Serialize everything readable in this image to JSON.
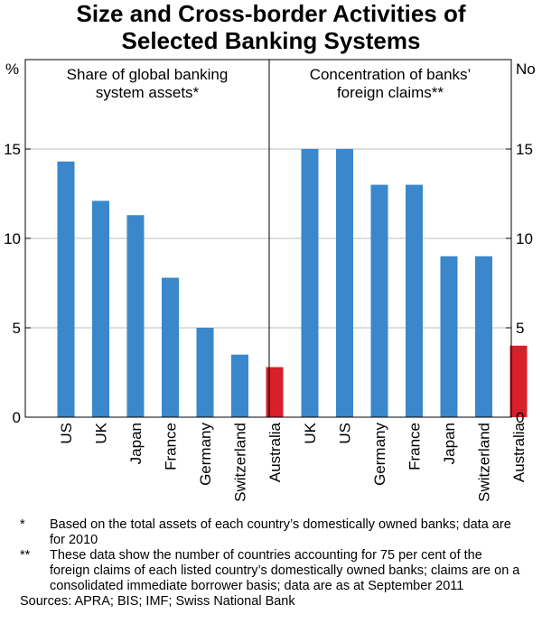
{
  "title_line1": "Size and Cross-border Activities of",
  "title_line2": "Selected Banking Systems",
  "colors": {
    "bar": "#3a87cc",
    "highlight": "#d7202a",
    "frame": "#000000",
    "grid": "#bdbdbd"
  },
  "chart_data": [
    {
      "type": "bar",
      "title_line1": "Share of global banking",
      "title_line2": "system assets*",
      "unit": "%",
      "ylim": [
        0,
        20
      ],
      "yticks": [
        0,
        5,
        10,
        15
      ],
      "grid": true,
      "categories": [
        "US",
        "UK",
        "Japan",
        "France",
        "Germany",
        "Switzerland",
        "Australia"
      ],
      "values": [
        14.3,
        12.1,
        11.3,
        7.8,
        5.0,
        3.5,
        2.8
      ],
      "highlight": [
        "Australia"
      ]
    },
    {
      "type": "bar",
      "title_line1": "Concentration of banks’",
      "title_line2": "foreign claims**",
      "unit": "No",
      "ylim": [
        0,
        20
      ],
      "yticks": [
        0,
        5,
        10,
        15
      ],
      "grid": true,
      "categories": [
        "UK",
        "US",
        "Germany",
        "France",
        "Japan",
        "Switzerland",
        "Australia"
      ],
      "values": [
        15,
        15,
        13,
        13,
        9,
        9,
        4
      ],
      "highlight": [
        "Australia"
      ]
    }
  ],
  "notes": [
    {
      "mark": "*",
      "text": "Based on the total assets of each country’s domestically owned banks; data are for 2010"
    },
    {
      "mark": "**",
      "text": "These data show the number of countries accounting for 75 per cent of the foreign claims of each listed country’s domestically owned banks; claims are on a consolidated immediate borrower basis; data are as at September 2011"
    }
  ],
  "source": "Sources: APRA; BIS; IMF; Swiss National Bank"
}
